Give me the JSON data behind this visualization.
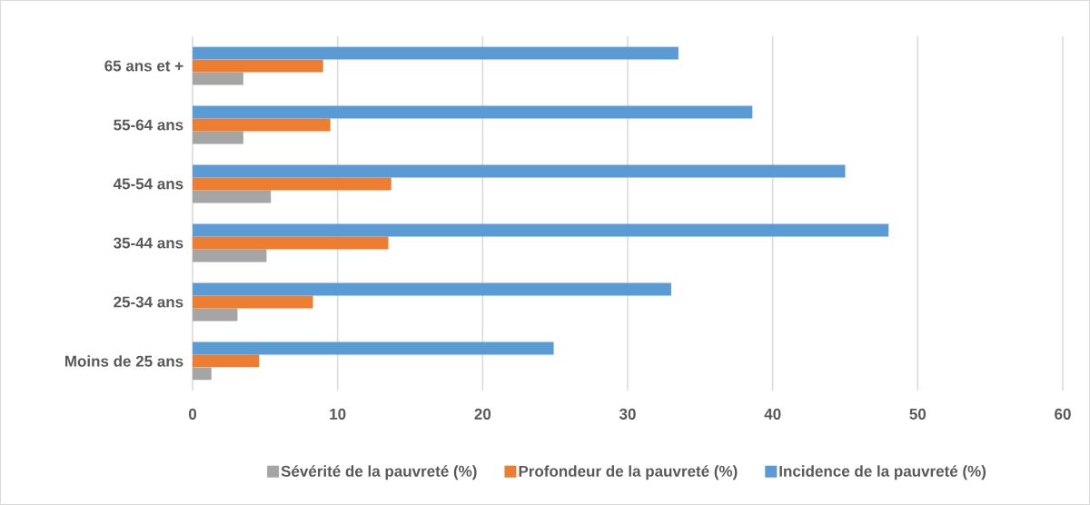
{
  "chart_data": {
    "type": "bar",
    "orientation": "horizontal",
    "categories": [
      "65 ans et +",
      "55-64 ans",
      "45-54 ans",
      "35-44 ans",
      "25-34 ans",
      "Moins de 25 ans"
    ],
    "series": [
      {
        "name": "Sévérité de la pauvreté (%)",
        "color": "#a5a5a5",
        "values": [
          3.5,
          3.5,
          5.4,
          5.1,
          3.1,
          1.3
        ]
      },
      {
        "name": "Profondeur de la pauvreté (%)",
        "color": "#ed7d31",
        "values": [
          9.0,
          9.5,
          13.7,
          13.5,
          8.3,
          4.6
        ]
      },
      {
        "name": "Incidence de la pauvreté (%)",
        "color": "#5b9bd5",
        "values": [
          33.5,
          38.6,
          45.0,
          48.0,
          33.0,
          24.9
        ]
      }
    ],
    "xlim": [
      0,
      60
    ],
    "xticks": [
      0,
      10,
      20,
      30,
      40,
      50,
      60
    ],
    "grid": "x",
    "legend": "bottom"
  }
}
